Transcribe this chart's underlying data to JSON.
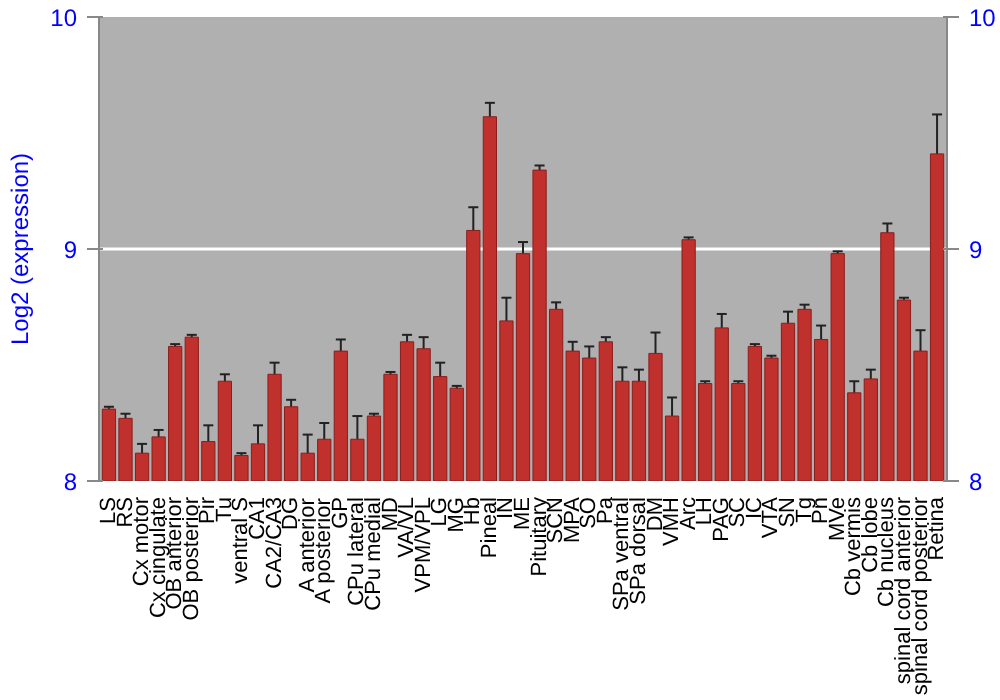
{
  "chart_data": {
    "type": "bar",
    "ylabel": "Log2 (expression)",
    "categories": [
      "LS",
      "RS",
      "Cx motor",
      "Cx cingulate",
      "OB anterior",
      "OB posterior",
      "Pir",
      "Tu",
      "ventral S",
      "CA1",
      "CA2/CA3",
      "DG",
      "A anterior",
      "A posterior",
      "GP",
      "CPu lateral",
      "CPu medial",
      "MD",
      "VA/VL",
      "VPM/VPL",
      "LG",
      "MG",
      "Hb",
      "Pineal",
      "IN",
      "ME",
      "Pituitary",
      "SCN",
      "MPA",
      "SO",
      "Pa",
      "SPa ventral",
      "SPa dorsal",
      "DM",
      "VMH",
      "Arc",
      "LH",
      "PAG",
      "SC",
      "IC",
      "VTA",
      "SN",
      "Tg",
      "Pn",
      "MVe",
      "Cb vermis",
      "Cb lobe",
      "Cb nucleus",
      "spinal cord anterior",
      "spinal cord posterior",
      "Retina"
    ],
    "values": [
      8.31,
      8.27,
      8.12,
      8.19,
      8.58,
      8.62,
      8.17,
      8.43,
      8.11,
      8.16,
      8.46,
      8.32,
      8.12,
      8.18,
      8.56,
      8.18,
      8.28,
      8.46,
      8.6,
      8.57,
      8.45,
      8.4,
      9.08,
      9.57,
      8.69,
      8.98,
      9.34,
      8.74,
      8.56,
      8.53,
      8.6,
      8.43,
      8.43,
      8.55,
      8.28,
      9.04,
      8.42,
      8.66,
      8.42,
      8.58,
      8.53,
      8.68,
      8.74,
      8.61,
      8.98,
      8.38,
      8.44,
      9.07,
      8.78,
      8.56,
      9.41
    ],
    "errors": [
      0.01,
      0.02,
      0.04,
      0.03,
      0.01,
      0.01,
      0.07,
      0.03,
      0.01,
      0.08,
      0.05,
      0.03,
      0.08,
      0.07,
      0.05,
      0.1,
      0.01,
      0.01,
      0.03,
      0.05,
      0.06,
      0.01,
      0.1,
      0.06,
      0.1,
      0.05,
      0.02,
      0.03,
      0.04,
      0.05,
      0.02,
      0.06,
      0.05,
      0.09,
      0.08,
      0.01,
      0.01,
      0.06,
      0.01,
      0.01,
      0.01,
      0.05,
      0.02,
      0.06,
      0.01,
      0.05,
      0.04,
      0.04,
      0.01,
      0.09,
      0.17
    ],
    "color": "#c0302c",
    "ylim": [
      8,
      10
    ],
    "yticks": [
      8,
      9,
      10
    ],
    "y2lim": [
      8,
      10
    ],
    "y2ticks": [
      8,
      9,
      10
    ],
    "grid": "y"
  }
}
